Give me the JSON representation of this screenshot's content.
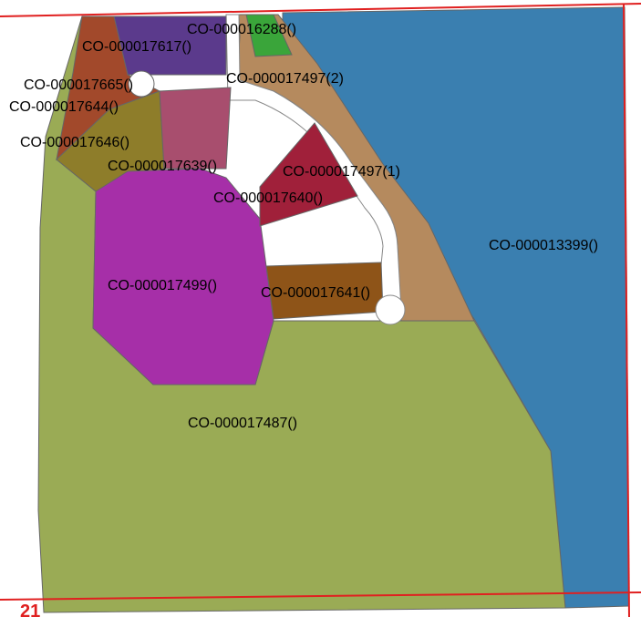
{
  "map": {
    "sheet_number": "21",
    "parcels": [
      {
        "id": "CO-000013399()",
        "color": "#3a7fb0"
      },
      {
        "id": "CO-000017487()",
        "color": "#9aab55"
      },
      {
        "id": "CO-000017497(1)",
        "color": "#b58a5e"
      },
      {
        "id": "CO-000017497(2)",
        "color": "#b58a5e"
      },
      {
        "id": "CO-000017499()",
        "color": "#a62fa8"
      },
      {
        "id": "CO-000017617()",
        "color": "#5b3a8c"
      },
      {
        "id": "CO-000016288()",
        "color": "#3aa53a"
      },
      {
        "id": "CO-000017665()",
        "color": "#ffffff"
      },
      {
        "id": "CO-000017644()",
        "color": "#a2492b"
      },
      {
        "id": "CO-000017646()",
        "color": "#8e7d2a"
      },
      {
        "id": "CO-000017639()",
        "color": "#a84e6e"
      },
      {
        "id": "CO-000017640()",
        "color": "#a0203a"
      },
      {
        "id": "CO-000017641()",
        "color": "#8e5418"
      }
    ]
  }
}
